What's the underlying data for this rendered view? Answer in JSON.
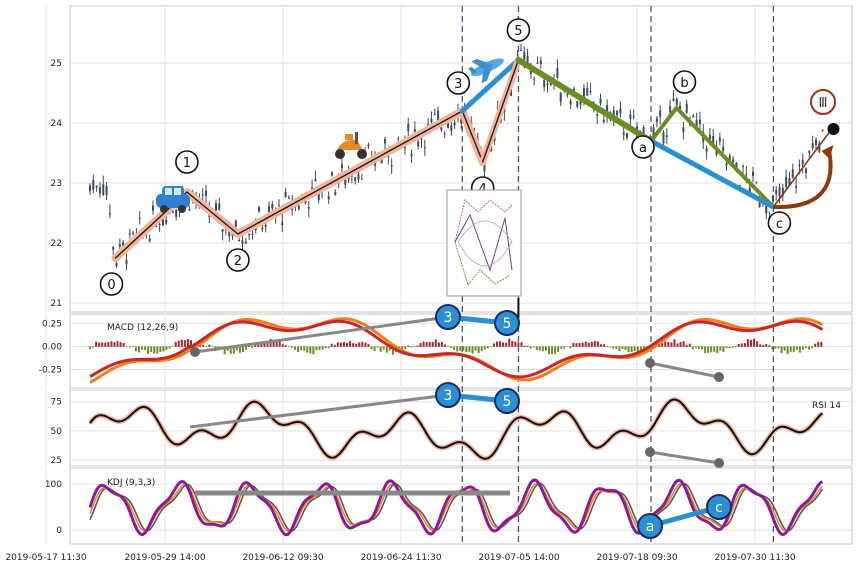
{
  "chart_data": {
    "type": "line",
    "x_tick_labels": [
      "2019-05-17 11:30",
      "2019-05-29 14:00",
      "2019-06-12 09:30",
      "2019-06-24 11:30",
      "2019-07-05 14:00",
      "2019-07-18 09:30",
      "2019-07-30 11:30"
    ],
    "price_panel": {
      "y_ticks": [
        "21",
        "22",
        "23",
        "24",
        "25"
      ],
      "ylim": [
        20.85,
        25.95
      ],
      "wave_points": [
        {
          "label": "0",
          "x": 0.05,
          "y": 21.75
        },
        {
          "label": "1",
          "x": 0.19,
          "y": 22.85
        },
        {
          "label": "2",
          "x": 0.29,
          "y": 22.15
        },
        {
          "label": "3",
          "x": 0.73,
          "y": 24.2
        },
        {
          "label": "4",
          "x": 0.77,
          "y": 23.35
        },
        {
          "label": "5",
          "x": 0.84,
          "y": 25.05
        },
        {
          "label": "a",
          "x": 1.1,
          "y": 23.7
        },
        {
          "label": "b",
          "x": 1.15,
          "y": 24.25
        },
        {
          "label": "c",
          "x": 1.34,
          "y": 22.6
        }
      ],
      "wave_degree_label": "Ⅲ",
      "colors": {
        "impulse": "#1f1f1f",
        "impulse_glow": "#f4b49a",
        "wave3to5": "#2b8fd1",
        "correction": "#6b8e23",
        "ac_line": "#2b8fd1",
        "projection": "#8b3a0f"
      }
    },
    "macd_panel": {
      "title": "MACD (12,26,9)",
      "y_ticks": [
        "0.25",
        "0.00",
        "-0.25"
      ],
      "ylim": [
        -0.45,
        0.35
      ],
      "divergence_labels": [
        "3",
        "5"
      ]
    },
    "rsi_panel": {
      "title": "RSI 14",
      "y_ticks": [
        "75",
        "50",
        "25"
      ],
      "ylim": [
        20,
        85
      ],
      "divergence_labels": [
        "3",
        "5"
      ]
    },
    "kdj_panel": {
      "title": "KDJ (9,3,3)",
      "y_ticks": [
        "100",
        "0"
      ],
      "ylim": [
        -30,
        135
      ],
      "divergence_labels": [
        "a",
        "c"
      ]
    }
  }
}
